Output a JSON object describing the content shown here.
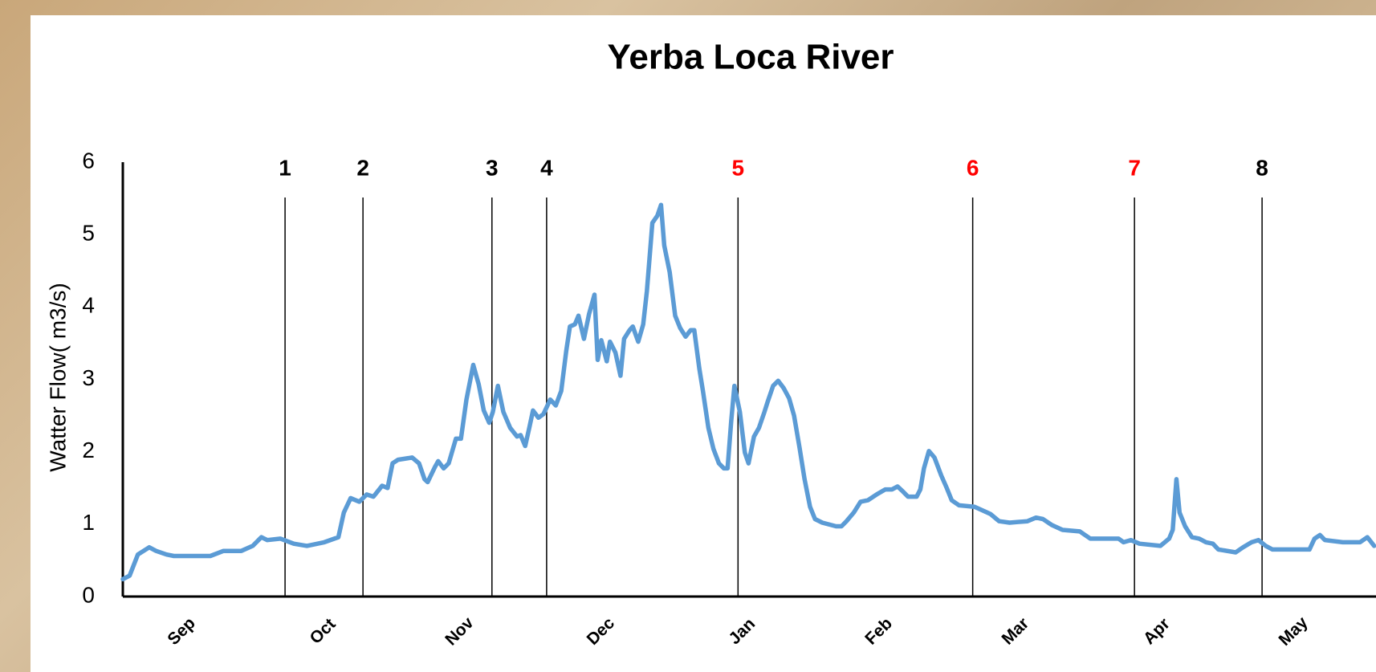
{
  "chart_data": {
    "type": "line",
    "title": "Yerba Loca River",
    "y_label": "Watter Flow( m3/s)",
    "xlim": [
      0,
      275
    ],
    "xticks": [
      {
        "value": 13,
        "label": "Sep"
      },
      {
        "value": 44,
        "label": "Oct"
      },
      {
        "value": 74,
        "label": "Nov"
      },
      {
        "value": 105,
        "label": "Dec"
      },
      {
        "value": 136,
        "label": "Jan"
      },
      {
        "value": 166,
        "label": "Feb"
      },
      {
        "value": 196,
        "label": "Mar"
      },
      {
        "value": 227,
        "label": "Apr"
      },
      {
        "value": 257,
        "label": "May"
      }
    ],
    "ylim": [
      0,
      6
    ],
    "yticks": [
      0,
      1,
      2,
      3,
      4,
      5,
      6
    ],
    "grid": false,
    "annotations": [
      {
        "label": "1",
        "x": 35.6,
        "color": "#000000"
      },
      {
        "label": "2",
        "x": 52.7,
        "color": "#000000"
      },
      {
        "label": "3",
        "x": 81,
        "color": "#000000"
      },
      {
        "label": "4",
        "x": 93,
        "color": "#000000"
      },
      {
        "label": "5",
        "x": 135,
        "color": "#ff0000"
      },
      {
        "label": "6",
        "x": 186.5,
        "color": "#ff0000"
      },
      {
        "label": "7",
        "x": 222,
        "color": "#ff0000"
      },
      {
        "label": "8",
        "x": 250,
        "color": "#000000"
      }
    ],
    "series": [
      {
        "color": "#5b9bd5",
        "x": [
          0,
          1.5,
          3.3,
          5.8,
          7.3,
          9.6,
          11.2,
          16.3,
          19.2,
          22.1,
          26,
          28.5,
          30.4,
          31.7,
          34.6,
          37.5,
          40.4,
          44.2,
          47.3,
          48.5,
          50,
          51.9,
          53.5,
          55,
          56.9,
          58.1,
          59.2,
          60.4,
          63.5,
          65,
          66.2,
          66.9,
          68.5,
          69.2,
          70.4,
          71.5,
          73.1,
          74.2,
          75.4,
          76.9,
          78.1,
          79.2,
          80.4,
          81.2,
          82.3,
          83.5,
          85,
          86.5,
          87.3,
          88.3,
          89.2,
          90,
          91.2,
          92.3,
          93.8,
          95,
          96.2,
          97.3,
          98.1,
          99.2,
          100,
          101.2,
          102.3,
          103.5,
          104.2,
          105,
          106.2,
          106.9,
          108.1,
          109.2,
          110,
          111.2,
          111.9,
          113.1,
          114.2,
          115,
          116.2,
          117.3,
          118.1,
          118.8,
          120,
          121.2,
          122.3,
          123.5,
          124.6,
          125.4,
          126.5,
          127.3,
          128.5,
          129.6,
          130.8,
          131.9,
          132.7,
          133.5,
          134.2,
          135.4,
          136.5,
          137.3,
          138.5,
          139.6,
          140.8,
          141.5,
          142.7,
          143.8,
          145,
          146.2,
          147.3,
          148.5,
          149.6,
          150.8,
          151.9,
          153.5,
          156.5,
          157.7,
          158.8,
          160.4,
          161.9,
          163.5,
          165.4,
          167.3,
          168.8,
          170,
          171.2,
          172.3,
          174.2,
          175,
          175.8,
          176.9,
          178.1,
          179.6,
          180.8,
          181.9,
          183.5,
          186.9,
          190.4,
          192.3,
          194.6,
          198.5,
          200.4,
          201.9,
          203.8,
          206.2,
          210,
          212.3,
          218.5,
          219.6,
          221.2,
          223.1,
          227.7,
          229.6,
          230.4,
          231.2,
          231.9,
          233.1,
          234.6,
          236.2,
          237.7,
          239.2,
          240.4,
          244.2,
          245.8,
          247.7,
          249.2,
          250.8,
          252.3,
          260.4,
          261.5,
          262.7,
          263.8,
          267.7,
          271.5,
          273.1,
          274.6
        ],
        "values": [
          0.24,
          0.29,
          0.58,
          0.68,
          0.63,
          0.58,
          0.56,
          0.56,
          0.56,
          0.63,
          0.63,
          0.7,
          0.82,
          0.78,
          0.8,
          0.73,
          0.7,
          0.75,
          0.82,
          1.16,
          1.36,
          1.31,
          1.41,
          1.38,
          1.53,
          1.5,
          1.84,
          1.89,
          1.92,
          1.84,
          1.62,
          1.58,
          1.79,
          1.87,
          1.77,
          1.84,
          2.18,
          2.18,
          2.72,
          3.2,
          2.93,
          2.57,
          2.4,
          2.55,
          2.91,
          2.55,
          2.33,
          2.21,
          2.23,
          2.08,
          2.33,
          2.57,
          2.47,
          2.52,
          2.72,
          2.64,
          2.84,
          3.39,
          3.73,
          3.76,
          3.88,
          3.56,
          3.9,
          4.17,
          3.27,
          3.54,
          3.25,
          3.52,
          3.37,
          3.05,
          3.56,
          3.68,
          3.73,
          3.52,
          3.76,
          4.22,
          5.16,
          5.26,
          5.41,
          4.85,
          4.48,
          3.88,
          3.71,
          3.59,
          3.68,
          3.68,
          3.15,
          2.84,
          2.33,
          2.04,
          1.84,
          1.77,
          1.77,
          2.42,
          2.91,
          2.55,
          1.99,
          1.84,
          2.21,
          2.33,
          2.55,
          2.69,
          2.91,
          2.98,
          2.88,
          2.74,
          2.5,
          2.06,
          1.62,
          1.24,
          1.07,
          1.02,
          0.97,
          0.97,
          1.04,
          1.16,
          1.31,
          1.33,
          1.41,
          1.48,
          1.48,
          1.52,
          1.45,
          1.38,
          1.38,
          1.48,
          1.77,
          2.01,
          1.92,
          1.67,
          1.5,
          1.33,
          1.26,
          1.24,
          1.14,
          1.04,
          1.02,
          1.04,
          1.09,
          1.07,
          0.99,
          0.92,
          0.9,
          0.8,
          0.8,
          0.75,
          0.78,
          0.73,
          0.7,
          0.8,
          0.92,
          1.62,
          1.16,
          0.97,
          0.82,
          0.8,
          0.75,
          0.73,
          0.65,
          0.61,
          0.68,
          0.75,
          0.78,
          0.7,
          0.65,
          0.65,
          0.8,
          0.85,
          0.78,
          0.75,
          0.75,
          0.82,
          0.7
        ]
      }
    ]
  }
}
